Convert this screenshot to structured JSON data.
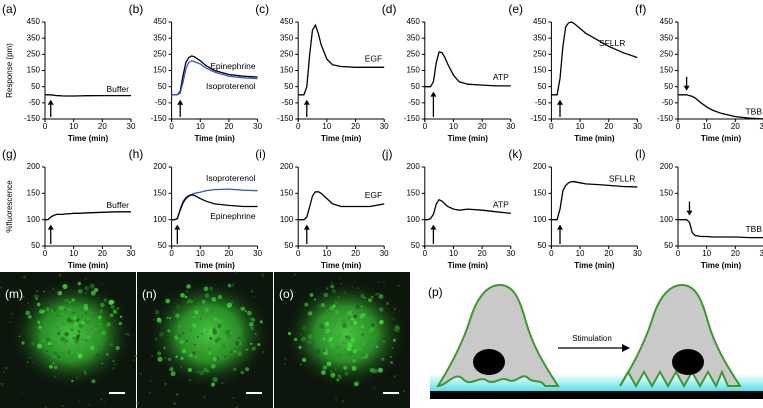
{
  "chart_data": [
    {
      "type": "line",
      "label": "(a)",
      "y_label": "Response (pm)",
      "x_label": "Time (min)",
      "xlim": [
        0,
        30
      ],
      "xticks": [
        0,
        10,
        20,
        30
      ],
      "ylim": [
        -150,
        450
      ],
      "yticks": [
        -150,
        -50,
        50,
        150,
        250,
        350,
        450
      ],
      "arrow_x": 2,
      "x": [
        0,
        1,
        2,
        3,
        4,
        5,
        6,
        7,
        8,
        10,
        12,
        15,
        20,
        25,
        30
      ],
      "series": [
        {
          "name": "Buffer",
          "color": "#000000",
          "values": [
            0,
            0,
            0,
            -3,
            -5,
            -6,
            -7,
            -8,
            -8,
            -8,
            -7,
            -6,
            -5,
            -5,
            -5
          ]
        }
      ]
    },
    {
      "type": "line",
      "label": "(b)",
      "x_label": "Time (min)",
      "xlim": [
        0,
        30
      ],
      "xticks": [
        0,
        10,
        20,
        30
      ],
      "ylim": [
        -150,
        450
      ],
      "yticks": [
        -150,
        -50,
        50,
        150,
        250,
        350,
        450
      ],
      "arrow_x": 3,
      "x": [
        0,
        1,
        2,
        3,
        4,
        5,
        6,
        7,
        8,
        10,
        12,
        15,
        20,
        25,
        30
      ],
      "series": [
        {
          "name": "Epinephrine",
          "color": "#000000",
          "values": [
            0,
            0,
            0,
            20,
            120,
            200,
            230,
            240,
            235,
            210,
            180,
            150,
            125,
            115,
            110
          ]
        },
        {
          "name": "Isoproterenol",
          "color": "#3a55d0",
          "values": [
            0,
            0,
            0,
            10,
            80,
            160,
            200,
            210,
            205,
            190,
            165,
            140,
            115,
            105,
            100
          ]
        }
      ]
    },
    {
      "type": "line",
      "label": "(c)",
      "x_label": "Time (min)",
      "xlim": [
        0,
        30
      ],
      "xticks": [
        0,
        10,
        20,
        30
      ],
      "ylim": [
        -150,
        450
      ],
      "yticks": [
        -150,
        -50,
        50,
        150,
        250,
        350,
        450
      ],
      "arrow_x": 3,
      "x": [
        0,
        1,
        2,
        3,
        4,
        5,
        6,
        7,
        8,
        10,
        12,
        15,
        20,
        25,
        30
      ],
      "series": [
        {
          "name": "EGF",
          "color": "#000000",
          "values": [
            0,
            0,
            0,
            50,
            250,
            400,
            430,
            380,
            310,
            220,
            185,
            175,
            170,
            170,
            170
          ]
        }
      ]
    },
    {
      "type": "line",
      "label": "(d)",
      "x_label": "Time (min)",
      "xlim": [
        0,
        30
      ],
      "xticks": [
        0,
        10,
        20,
        30
      ],
      "ylim": [
        -150,
        450
      ],
      "yticks": [
        -150,
        -50,
        50,
        150,
        250,
        350,
        450
      ],
      "arrow_x": 3,
      "x": [
        0,
        1,
        2,
        3,
        4,
        5,
        6,
        7,
        8,
        10,
        12,
        15,
        20,
        25,
        30
      ],
      "series": [
        {
          "name": "ATP",
          "color": "#000000",
          "values": [
            50,
            50,
            50,
            80,
            200,
            265,
            260,
            230,
            190,
            120,
            80,
            65,
            60,
            55,
            55
          ]
        }
      ]
    },
    {
      "type": "line",
      "label": "(e)",
      "x_label": "Time (min)",
      "xlim": [
        0,
        30
      ],
      "xticks": [
        0,
        10,
        20,
        30
      ],
      "ylim": [
        -150,
        450
      ],
      "yticks": [
        -150,
        -50,
        50,
        150,
        250,
        350,
        450
      ],
      "arrow_x": 3,
      "x": [
        0,
        1,
        2,
        3,
        4,
        5,
        6,
        7,
        8,
        10,
        12,
        15,
        20,
        25,
        30
      ],
      "series": [
        {
          "name": "SFLLR",
          "color": "#000000",
          "values": [
            0,
            0,
            0,
            100,
            300,
            420,
            445,
            450,
            440,
            410,
            380,
            350,
            300,
            260,
            230
          ]
        }
      ]
    },
    {
      "type": "line",
      "label": "(f)",
      "x_label": "Time (min)",
      "xlim": [
        0,
        30
      ],
      "xticks": [
        0,
        10,
        20,
        30
      ],
      "ylim": [
        -150,
        450
      ],
      "yticks": [
        -150,
        -50,
        50,
        150,
        250,
        350,
        450
      ],
      "arrow_x": 3,
      "x": [
        0,
        1,
        2,
        3,
        4,
        5,
        6,
        7,
        8,
        10,
        12,
        15,
        20,
        25,
        30
      ],
      "series": [
        {
          "name": "TBB",
          "color": "#000000",
          "values": [
            0,
            0,
            0,
            0,
            -5,
            -10,
            -20,
            -35,
            -50,
            -75,
            -95,
            -115,
            -135,
            -145,
            -150
          ]
        }
      ]
    },
    {
      "type": "line",
      "label": "(g)",
      "y_label": "%fluorescence",
      "x_label": "Time (min)",
      "xlim": [
        0,
        30
      ],
      "xticks": [
        0,
        10,
        20,
        30
      ],
      "ylim": [
        50,
        200
      ],
      "yticks": [
        50,
        100,
        150,
        200
      ],
      "arrow_x": 2,
      "x": [
        0,
        1,
        2,
        3,
        4,
        5,
        6,
        7,
        8,
        10,
        12,
        15,
        20,
        25,
        30
      ],
      "series": [
        {
          "name": "Buffer",
          "color": "#000000",
          "values": [
            100,
            100,
            105,
            108,
            110,
            110,
            110,
            111,
            111,
            112,
            112,
            113,
            114,
            115,
            115
          ]
        }
      ]
    },
    {
      "type": "line",
      "label": "(h)",
      "x_label": "Time (min)",
      "xlim": [
        0,
        30
      ],
      "xticks": [
        0,
        10,
        20,
        30
      ],
      "ylim": [
        50,
        200
      ],
      "yticks": [
        50,
        100,
        150,
        200
      ],
      "arrow_x": 2,
      "x": [
        0,
        1,
        2,
        3,
        4,
        5,
        6,
        7,
        8,
        10,
        12,
        15,
        20,
        25,
        30
      ],
      "series": [
        {
          "name": "Isoproterenol",
          "color": "#3a55d0",
          "values": [
            100,
            100,
            102,
            120,
            135,
            142,
            146,
            148,
            150,
            152,
            155,
            157,
            158,
            156,
            155
          ]
        },
        {
          "name": "Epinephrine",
          "color": "#000000",
          "values": [
            100,
            100,
            102,
            118,
            132,
            140,
            145,
            147,
            146,
            140,
            135,
            130,
            127,
            125,
            125
          ]
        }
      ]
    },
    {
      "type": "line",
      "label": "(i)",
      "x_label": "Time (min)",
      "xlim": [
        0,
        30
      ],
      "xticks": [
        0,
        10,
        20,
        30
      ],
      "ylim": [
        50,
        200
      ],
      "yticks": [
        50,
        100,
        150,
        200
      ],
      "arrow_x": 3,
      "x": [
        0,
        1,
        2,
        3,
        4,
        5,
        6,
        7,
        8,
        10,
        12,
        15,
        20,
        25,
        30
      ],
      "series": [
        {
          "name": "EGF",
          "color": "#000000",
          "values": [
            100,
            100,
            100,
            105,
            125,
            145,
            153,
            153,
            150,
            140,
            130,
            125,
            125,
            125,
            130
          ]
        }
      ]
    },
    {
      "type": "line",
      "label": "(j)",
      "x_label": "Time (min)",
      "xlim": [
        0,
        30
      ],
      "xticks": [
        0,
        10,
        20,
        30
      ],
      "ylim": [
        50,
        200
      ],
      "yticks": [
        50,
        100,
        150,
        200
      ],
      "arrow_x": 3,
      "x": [
        0,
        1,
        2,
        3,
        4,
        5,
        6,
        7,
        8,
        10,
        12,
        15,
        20,
        25,
        30
      ],
      "series": [
        {
          "name": "ATP",
          "color": "#000000",
          "values": [
            100,
            100,
            102,
            110,
            130,
            138,
            135,
            130,
            125,
            120,
            118,
            120,
            118,
            115,
            112
          ]
        }
      ]
    },
    {
      "type": "line",
      "label": "(k)",
      "x_label": "Time (min)",
      "xlim": [
        0,
        30
      ],
      "xticks": [
        0,
        10,
        20,
        30
      ],
      "ylim": [
        50,
        200
      ],
      "yticks": [
        50,
        100,
        150,
        200
      ],
      "arrow_x": 3,
      "x": [
        0,
        1,
        2,
        3,
        4,
        5,
        6,
        7,
        8,
        10,
        12,
        15,
        20,
        25,
        30
      ],
      "series": [
        {
          "name": "SFLLR",
          "color": "#000000",
          "values": [
            100,
            100,
            100,
            120,
            155,
            165,
            170,
            172,
            172,
            170,
            168,
            167,
            165,
            163,
            162
          ]
        }
      ]
    },
    {
      "type": "line",
      "label": "(l)",
      "x_label": "Time (min)",
      "xlim": [
        0,
        30
      ],
      "xticks": [
        0,
        10,
        20,
        30
      ],
      "ylim": [
        50,
        200
      ],
      "yticks": [
        50,
        100,
        150,
        200
      ],
      "arrow_x": 4,
      "x": [
        0,
        1,
        2,
        3,
        4,
        5,
        6,
        7,
        8,
        10,
        12,
        15,
        20,
        25,
        30
      ],
      "series": [
        {
          "name": "TBB",
          "color": "#000000",
          "values": [
            100,
            100,
            100,
            100,
            95,
            75,
            70,
            69,
            68,
            68,
            67,
            67,
            67,
            66,
            66
          ]
        }
      ]
    }
  ],
  "image_panels": [
    {
      "label": "(m)"
    },
    {
      "label": "(n)"
    },
    {
      "label": "(o)"
    }
  ],
  "diagram": {
    "label": "(p)",
    "arrow_label": "Stimulation"
  }
}
